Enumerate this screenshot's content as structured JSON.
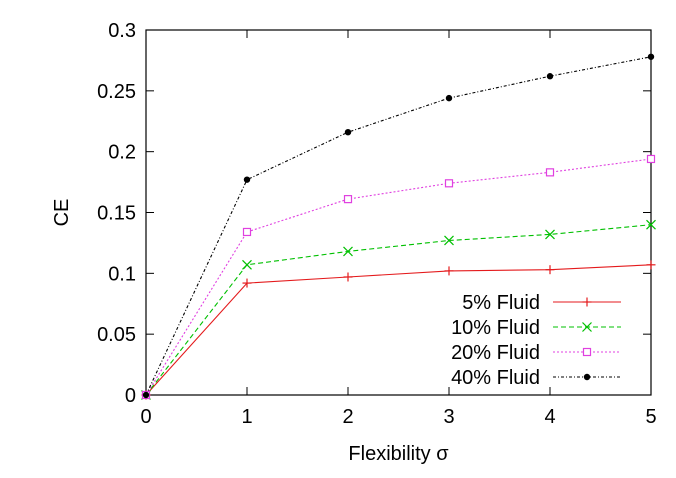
{
  "chart_data": {
    "type": "line",
    "title": "",
    "xlabel": "Flexibility σ",
    "ylabel": "CE",
    "xlim": [
      0,
      5
    ],
    "ylim": [
      0,
      0.3
    ],
    "x_ticks": [
      0,
      1,
      2,
      3,
      4,
      5
    ],
    "x_tick_labels": [
      "0",
      "1",
      "2",
      "3",
      "4",
      "5"
    ],
    "y_ticks": [
      0,
      0.05,
      0.1,
      0.15,
      0.2,
      0.25,
      0.3
    ],
    "y_tick_labels": [
      "0",
      "0.05",
      "0.1",
      "0.15",
      "0.2",
      "0.25",
      "0.3"
    ],
    "grid": false,
    "legend_position": "bottom-right",
    "x": [
      0,
      1,
      2,
      3,
      4,
      5
    ],
    "series": [
      {
        "name": "5% Fluid",
        "color": "#e41a1c",
        "dash": "solid",
        "marker": "plus",
        "values": [
          0,
          0.092,
          0.097,
          0.102,
          0.103,
          0.107
        ]
      },
      {
        "name": "10% Fluid",
        "color": "#00c000",
        "dash": "dashed",
        "marker": "x",
        "values": [
          0,
          0.107,
          0.118,
          0.127,
          0.132,
          0.14
        ]
      },
      {
        "name": "20% Fluid",
        "color": "#e040e0",
        "dash": "dotted",
        "marker": "open-square",
        "values": [
          0,
          0.134,
          0.161,
          0.174,
          0.183,
          0.194
        ]
      },
      {
        "name": "40% Fluid",
        "color": "#000000",
        "dash": "dashdot",
        "marker": "filled-circle",
        "values": [
          0,
          0.177,
          0.216,
          0.244,
          0.262,
          0.278
        ]
      }
    ]
  }
}
